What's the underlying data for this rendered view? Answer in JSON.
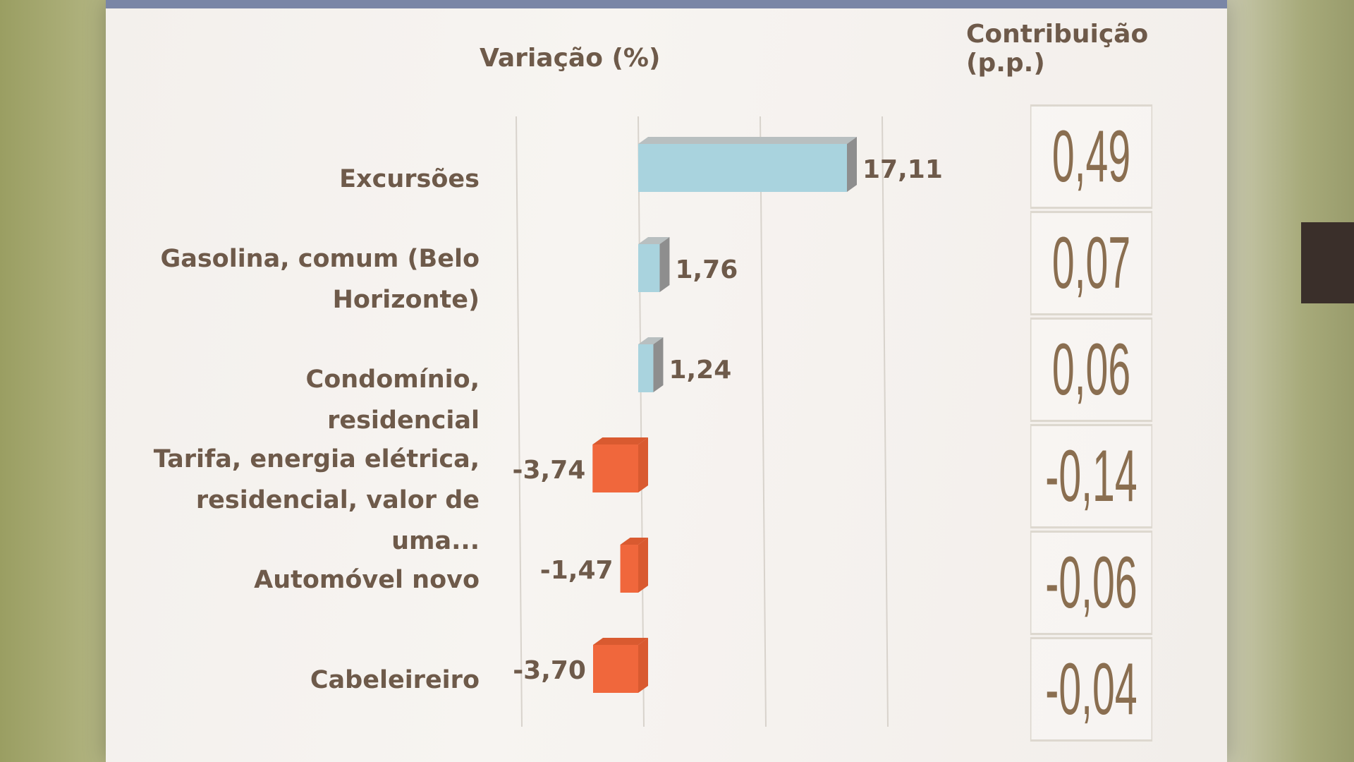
{
  "headers": {
    "variacao": "Variação (%)",
    "contribuicao": "Contribuição (p.p.)"
  },
  "colors": {
    "positive_bar": "#a9d3de",
    "positive_bar_side": "#8e8e8e",
    "negative_bar": "#f0673c",
    "negative_bar_side": "#d95a30",
    "text": "#6e5a4a",
    "contrib_text": "#8a6e50"
  },
  "chart_data": {
    "type": "bar",
    "orientation": "horizontal",
    "categories": [
      "Excursões",
      "Gasolina, comum (Belo Horizonte)",
      "Condomínio, residencial",
      "Tarifa, energia elétrica, residencial, valor de uma...",
      "Automóvel novo",
      "Cabeleireiro"
    ],
    "values": [
      17.11,
      1.76,
      1.24,
      -3.74,
      -1.47,
      -3.7
    ],
    "value_labels": [
      "17,11",
      "1,76",
      "1,24",
      "-3,74",
      "-1,47",
      "-3,70"
    ],
    "contribution_labels": [
      "0,49",
      "0,07",
      "0,06",
      "-0,14",
      "-0,06",
      "-0,04"
    ],
    "xlabel": "Variação (%)",
    "xlim": [
      -10,
      30
    ],
    "grid": true
  }
}
